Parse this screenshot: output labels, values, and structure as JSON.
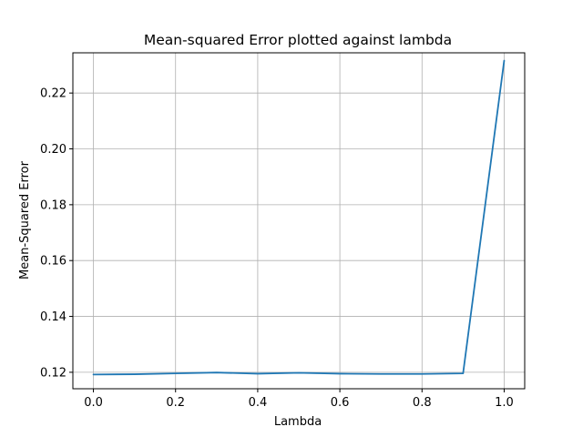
{
  "chart_data": {
    "type": "line",
    "title": "Mean-squared Error plotted against lambda",
    "xlabel": "Lambda",
    "ylabel": "Mean-Squared Error",
    "xlim": [
      -0.05,
      1.05
    ],
    "ylim": [
      0.1141,
      0.2344
    ],
    "xticks": [
      0.0,
      0.2,
      0.4,
      0.6,
      0.8,
      1.0
    ],
    "xtick_labels": [
      "0.0",
      "0.2",
      "0.4",
      "0.6",
      "0.8",
      "1.0"
    ],
    "yticks": [
      0.12,
      0.14,
      0.16,
      0.18,
      0.2,
      0.22
    ],
    "ytick_labels": [
      "0.12",
      "0.14",
      "0.16",
      "0.18",
      "0.20",
      "0.22"
    ],
    "grid": true,
    "colors": {
      "line": "#1f77b4",
      "grid": "#b0b0b0",
      "axes": "#000000"
    },
    "series": [
      {
        "x": [
          0.0,
          0.1,
          0.2,
          0.3,
          0.4,
          0.5,
          0.6,
          0.7,
          0.8,
          0.9,
          1.0
        ],
        "values": [
          0.1192,
          0.1193,
          0.1196,
          0.1199,
          0.1195,
          0.1198,
          0.1195,
          0.1194,
          0.1194,
          0.1196,
          0.2316
        ]
      }
    ]
  }
}
